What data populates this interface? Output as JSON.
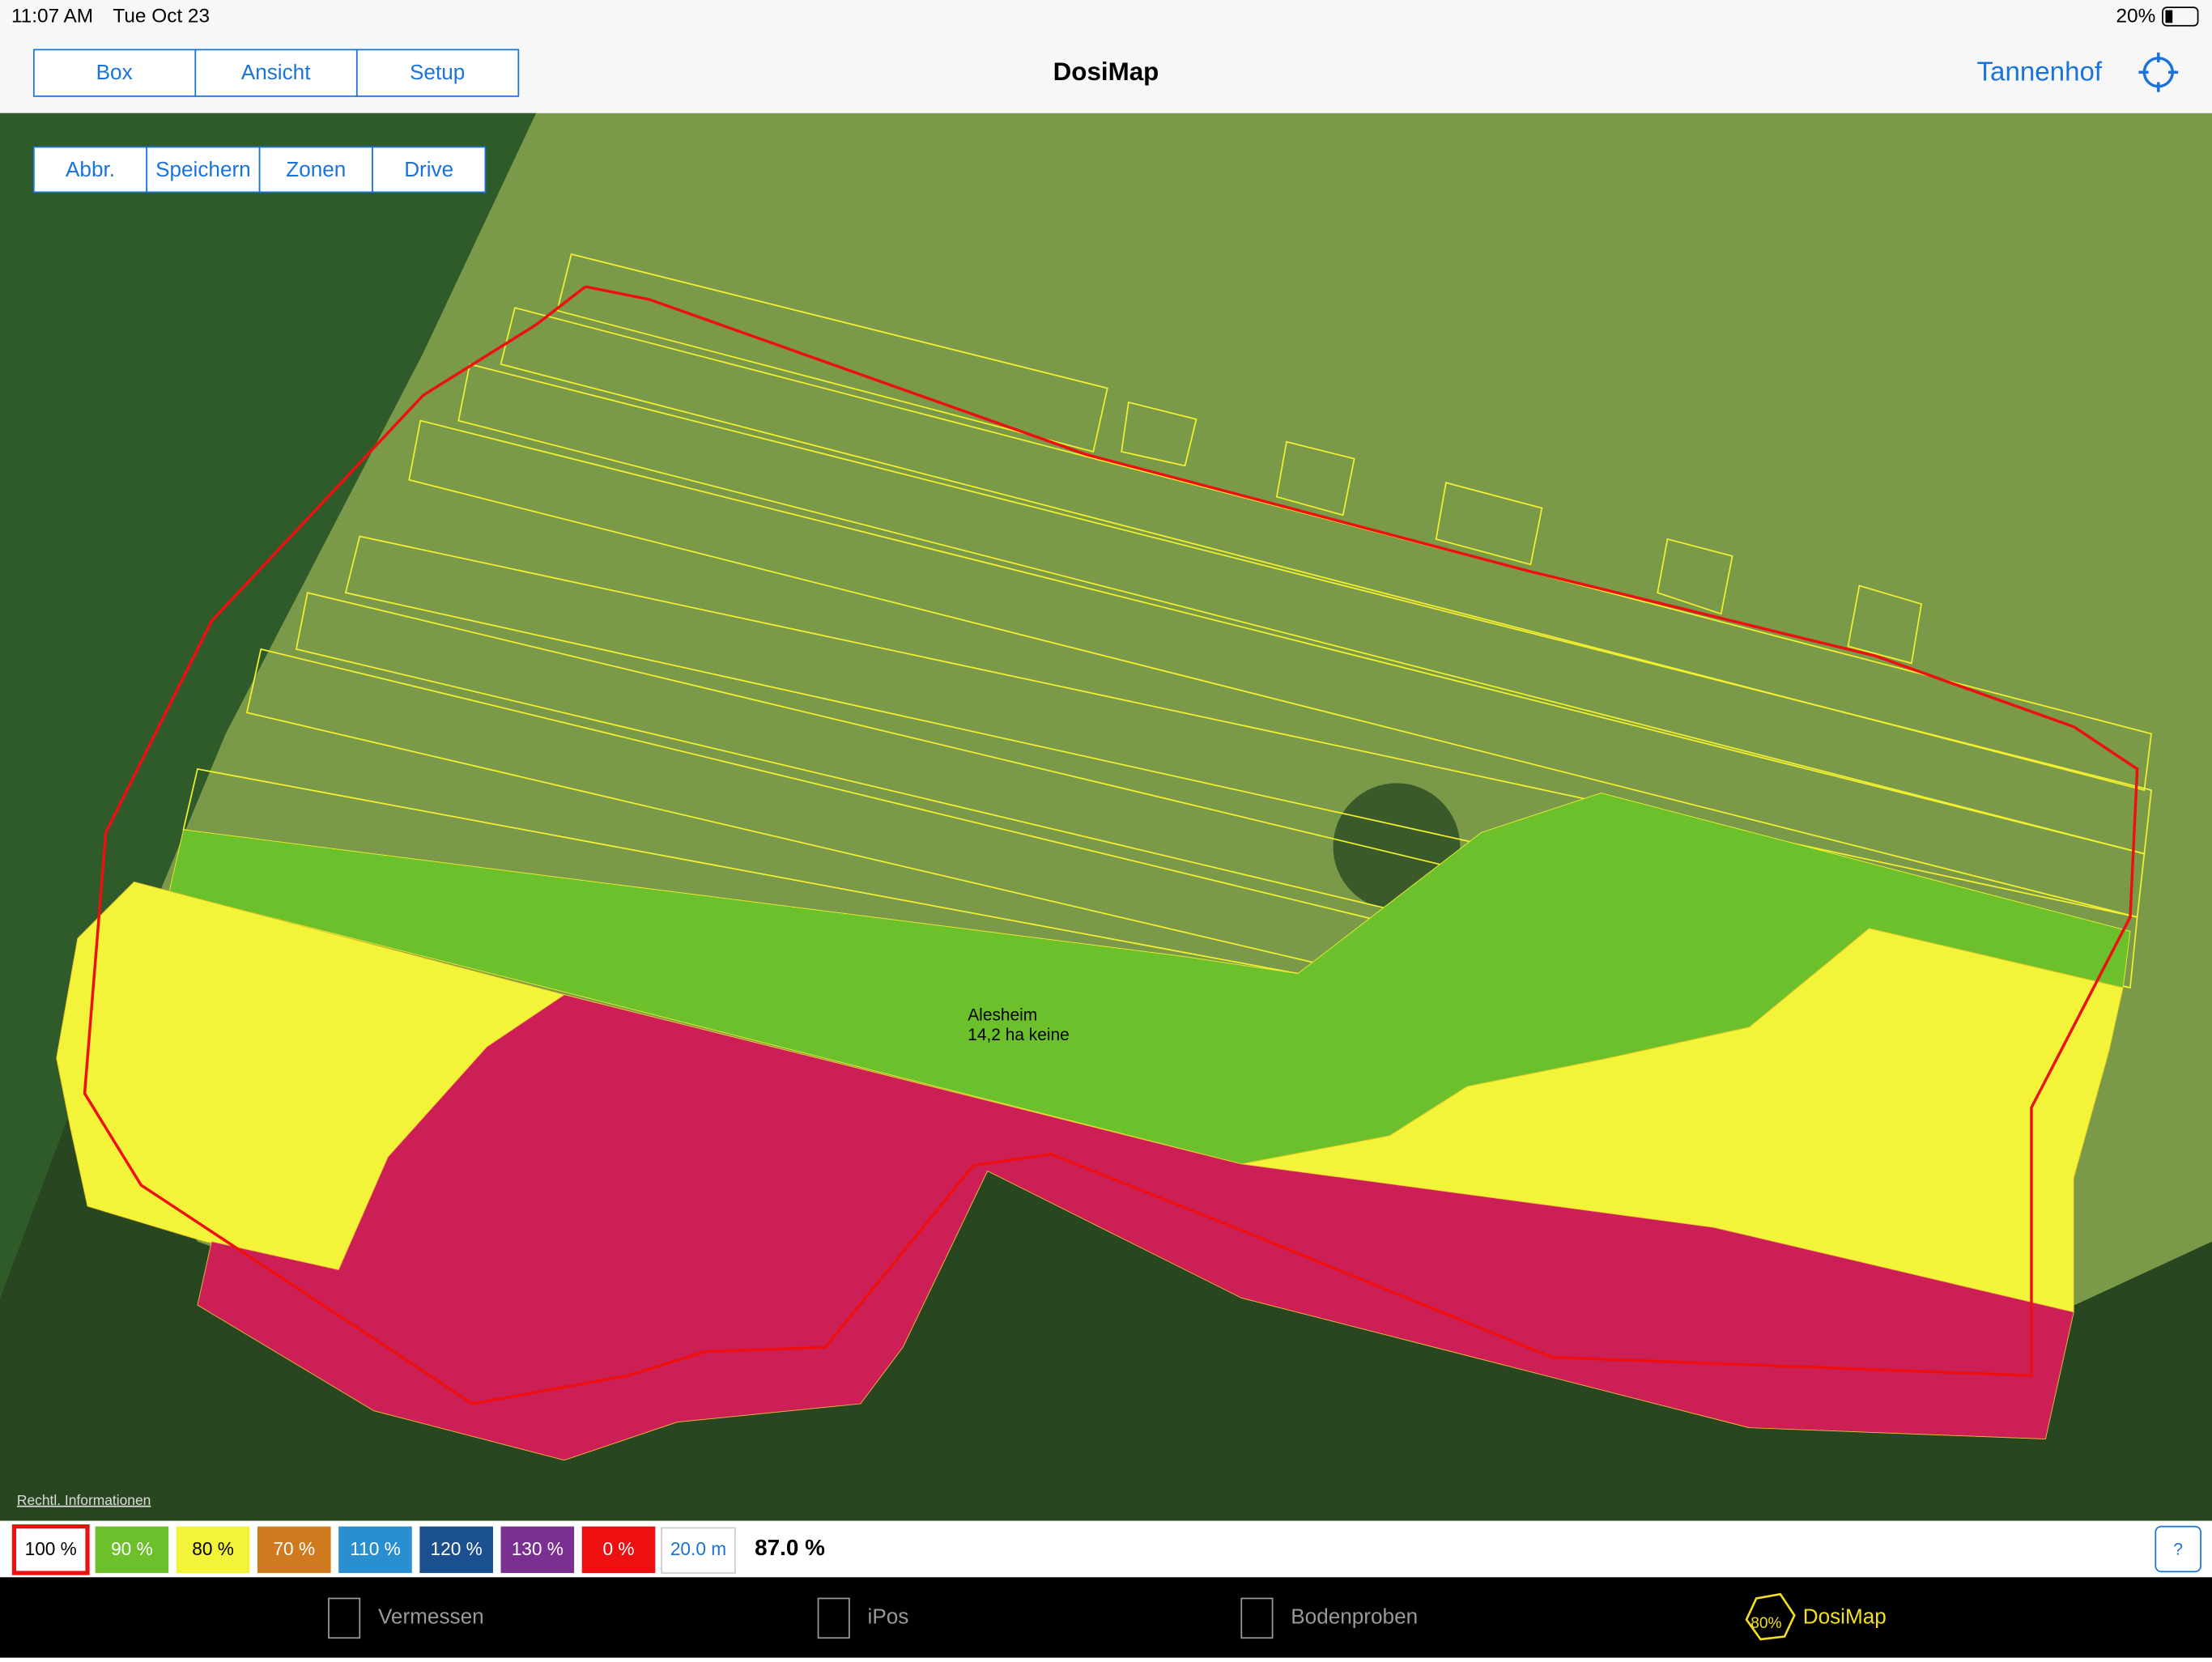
{
  "status": {
    "time": "11:07 AM",
    "date": "Tue Oct 23",
    "battery": "20%"
  },
  "nav": {
    "segments": [
      "Box",
      "Ansicht",
      "Setup"
    ],
    "title": "DosiMap",
    "farm": "Tannenhof"
  },
  "map": {
    "buttons": [
      "Abbr.",
      "Speichern",
      "Zonen",
      "Drive"
    ],
    "field_name": "Alesheim",
    "field_info": "14,2 ha keine",
    "legal": "Rechtl. Informationen"
  },
  "legend": {
    "rates": [
      "100 %",
      "90 %",
      "80 %",
      "70 %",
      "110 %",
      "120 %",
      "130 %",
      "0 %"
    ],
    "width": "20.0 m",
    "average": "87.0 %",
    "help": "?"
  },
  "tabs": {
    "items": [
      "Vermessen",
      "iPos",
      "Bodenproben",
      "DosiMap"
    ],
    "badge": "80%"
  }
}
